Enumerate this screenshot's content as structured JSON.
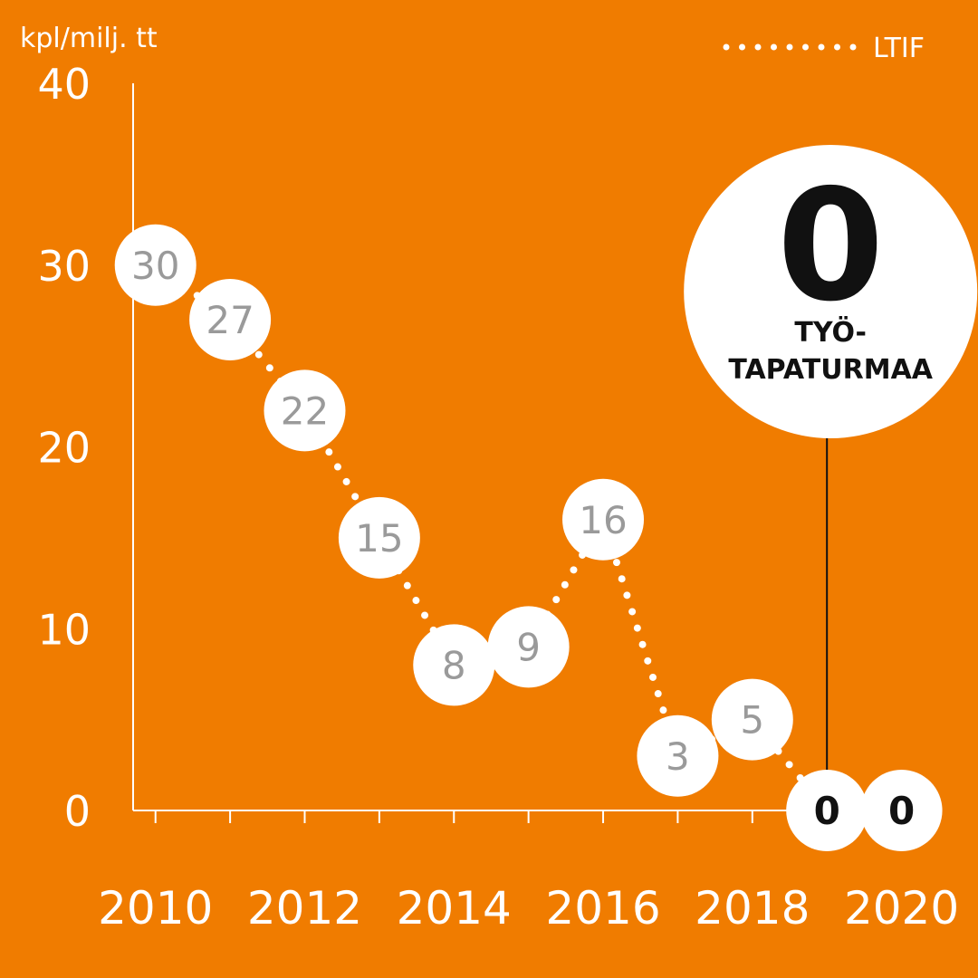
{
  "chart_data": {
    "type": "line",
    "ylabel": "kpl/milj. tt",
    "ylim": [
      0,
      40
    ],
    "yticks": [
      0,
      10,
      20,
      30,
      40
    ],
    "xlim": [
      2009.7,
      2020.6
    ],
    "xticks": [
      2010,
      2012,
      2014,
      2016,
      2018,
      2020
    ],
    "series": [
      {
        "name": "LTIF",
        "x": [
          2010,
          2011,
          2012,
          2013,
          2014,
          2015,
          2016,
          2017,
          2018,
          2019,
          2020
        ],
        "values": [
          30,
          27,
          22,
          15,
          8,
          9,
          16,
          3,
          5,
          0,
          0
        ],
        "labels": [
          "30",
          "27",
          "22",
          "15",
          "8",
          "9",
          "16",
          "3",
          "5",
          "0",
          "0"
        ],
        "highlight_from_index": 9
      }
    ],
    "legend": {
      "label": "LTIF",
      "style": "dotted",
      "position": "top-right"
    },
    "callout": {
      "number": "0",
      "line1": "TYÖ-",
      "line2": "TAPATURMAA",
      "index": 9
    }
  },
  "colors": {
    "background": "#f07c00",
    "axis": "#ffffff",
    "bubble": "#ffffff",
    "value_text": "#9a9a9a",
    "highlight_text": "#111111"
  }
}
